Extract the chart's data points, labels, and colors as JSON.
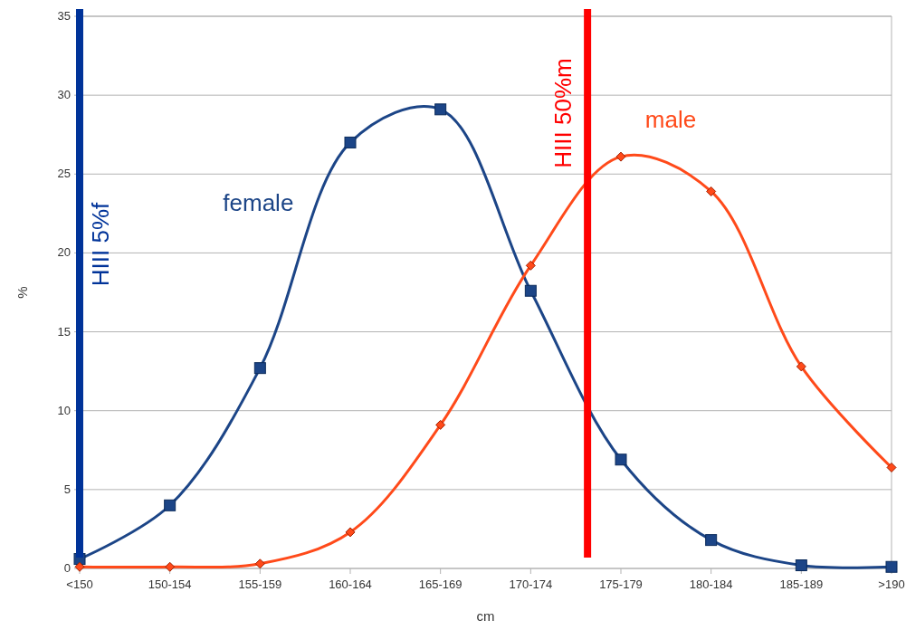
{
  "chart_data": {
    "type": "line",
    "xlabel": "cm",
    "ylabel": "%",
    "categories": [
      "<150",
      "150-154",
      "155-159",
      "160-164",
      "165-169",
      "170-174",
      "175-179",
      "180-184",
      "185-189",
      ">190"
    ],
    "series": [
      {
        "name": "female",
        "color": "#1c4587",
        "marker": "square",
        "values": [
          0.6,
          4.0,
          12.7,
          27.0,
          29.1,
          17.6,
          6.9,
          1.8,
          0.2,
          0.1
        ]
      },
      {
        "name": "male",
        "color": "#ff4a1a",
        "marker": "diamond",
        "values": [
          0.1,
          0.1,
          0.3,
          2.3,
          9.1,
          19.2,
          26.1,
          23.9,
          12.8,
          6.4
        ]
      }
    ],
    "ylim": [
      0,
      35
    ],
    "yticks": [
      0,
      5,
      10,
      15,
      20,
      25,
      30,
      35
    ],
    "grid": "y",
    "annotations": [
      "HIII 5%f",
      "HIII 50%m"
    ]
  }
}
